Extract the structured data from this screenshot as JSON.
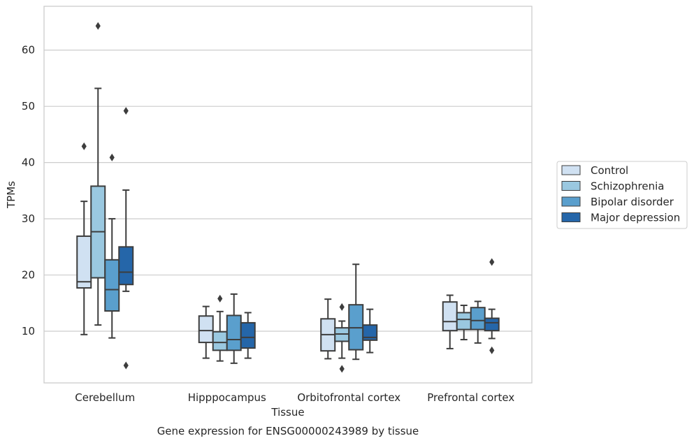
{
  "chart_data": {
    "type": "box",
    "caption": "Gene expression for ENSG00000243989 by tissue",
    "xlabel": "Tissue",
    "ylabel": "TPMs",
    "ylim": [
      0.8,
      67.8
    ],
    "yticks": [
      10,
      20,
      30,
      40,
      50,
      60
    ],
    "grid": true,
    "legend_position": "right",
    "categories": [
      "Cerebellum",
      "Hipppocampus",
      "Orbitofrontal cortex",
      "Prefrontal cortex"
    ],
    "series": [
      {
        "name": "Control",
        "color": "#d0e1f2",
        "boxes": [
          {
            "whislo": 9.4,
            "q1": 17.7,
            "med": 18.8,
            "q3": 26.9,
            "whishi": 33.1,
            "fliers": [
              42.9
            ]
          },
          {
            "whislo": 5.2,
            "q1": 8.0,
            "med": 10.1,
            "q3": 12.7,
            "whishi": 14.4,
            "fliers": []
          },
          {
            "whislo": 5.1,
            "q1": 6.5,
            "med": 9.4,
            "q3": 12.2,
            "whishi": 15.7,
            "fliers": []
          },
          {
            "whislo": 6.9,
            "q1": 10.1,
            "med": 11.7,
            "q3": 15.2,
            "whishi": 16.4,
            "fliers": []
          }
        ]
      },
      {
        "name": "Schizophrenia",
        "color": "#9ac8e0",
        "boxes": [
          {
            "whislo": 11.1,
            "q1": 19.5,
            "med": 27.7,
            "q3": 35.8,
            "whishi": 53.2,
            "fliers": [
              64.3
            ]
          },
          {
            "whislo": 4.7,
            "q1": 6.6,
            "med": 8.0,
            "q3": 9.9,
            "whishi": 13.5,
            "fliers": [
              15.8
            ]
          },
          {
            "whislo": 5.2,
            "q1": 8.2,
            "med": 9.5,
            "q3": 10.6,
            "whishi": 11.8,
            "fliers": [
              14.3,
              3.3
            ]
          },
          {
            "whislo": 8.5,
            "q1": 10.3,
            "med": 12.1,
            "q3": 13.3,
            "whishi": 14.6,
            "fliers": []
          }
        ]
      },
      {
        "name": "Bipolar disorder",
        "color": "#5a9fcd",
        "boxes": [
          {
            "whislo": 8.8,
            "q1": 13.6,
            "med": 17.4,
            "q3": 22.7,
            "whishi": 30.0,
            "fliers": [
              40.9
            ]
          },
          {
            "whislo": 4.3,
            "q1": 6.6,
            "med": 8.5,
            "q3": 12.8,
            "whishi": 16.6,
            "fliers": []
          },
          {
            "whislo": 5.0,
            "q1": 6.7,
            "med": 10.6,
            "q3": 14.7,
            "whishi": 21.9,
            "fliers": []
          },
          {
            "whislo": 7.9,
            "q1": 10.3,
            "med": 11.9,
            "q3": 14.2,
            "whishi": 15.3,
            "fliers": []
          }
        ]
      },
      {
        "name": "Major depression",
        "color": "#2566a9",
        "boxes": [
          {
            "whislo": 17.1,
            "q1": 18.3,
            "med": 20.5,
            "q3": 25.0,
            "whishi": 35.1,
            "fliers": [
              49.2,
              3.9
            ]
          },
          {
            "whislo": 5.2,
            "q1": 7.0,
            "med": 8.9,
            "q3": 11.5,
            "whishi": 13.3,
            "fliers": []
          },
          {
            "whislo": 6.2,
            "q1": 8.4,
            "med": 8.9,
            "q3": 11.1,
            "whishi": 13.9,
            "fliers": []
          },
          {
            "whislo": 8.7,
            "q1": 10.1,
            "med": 11.5,
            "q3": 12.3,
            "whishi": 13.9,
            "fliers": [
              22.3,
              6.6
            ]
          }
        ]
      }
    ]
  }
}
